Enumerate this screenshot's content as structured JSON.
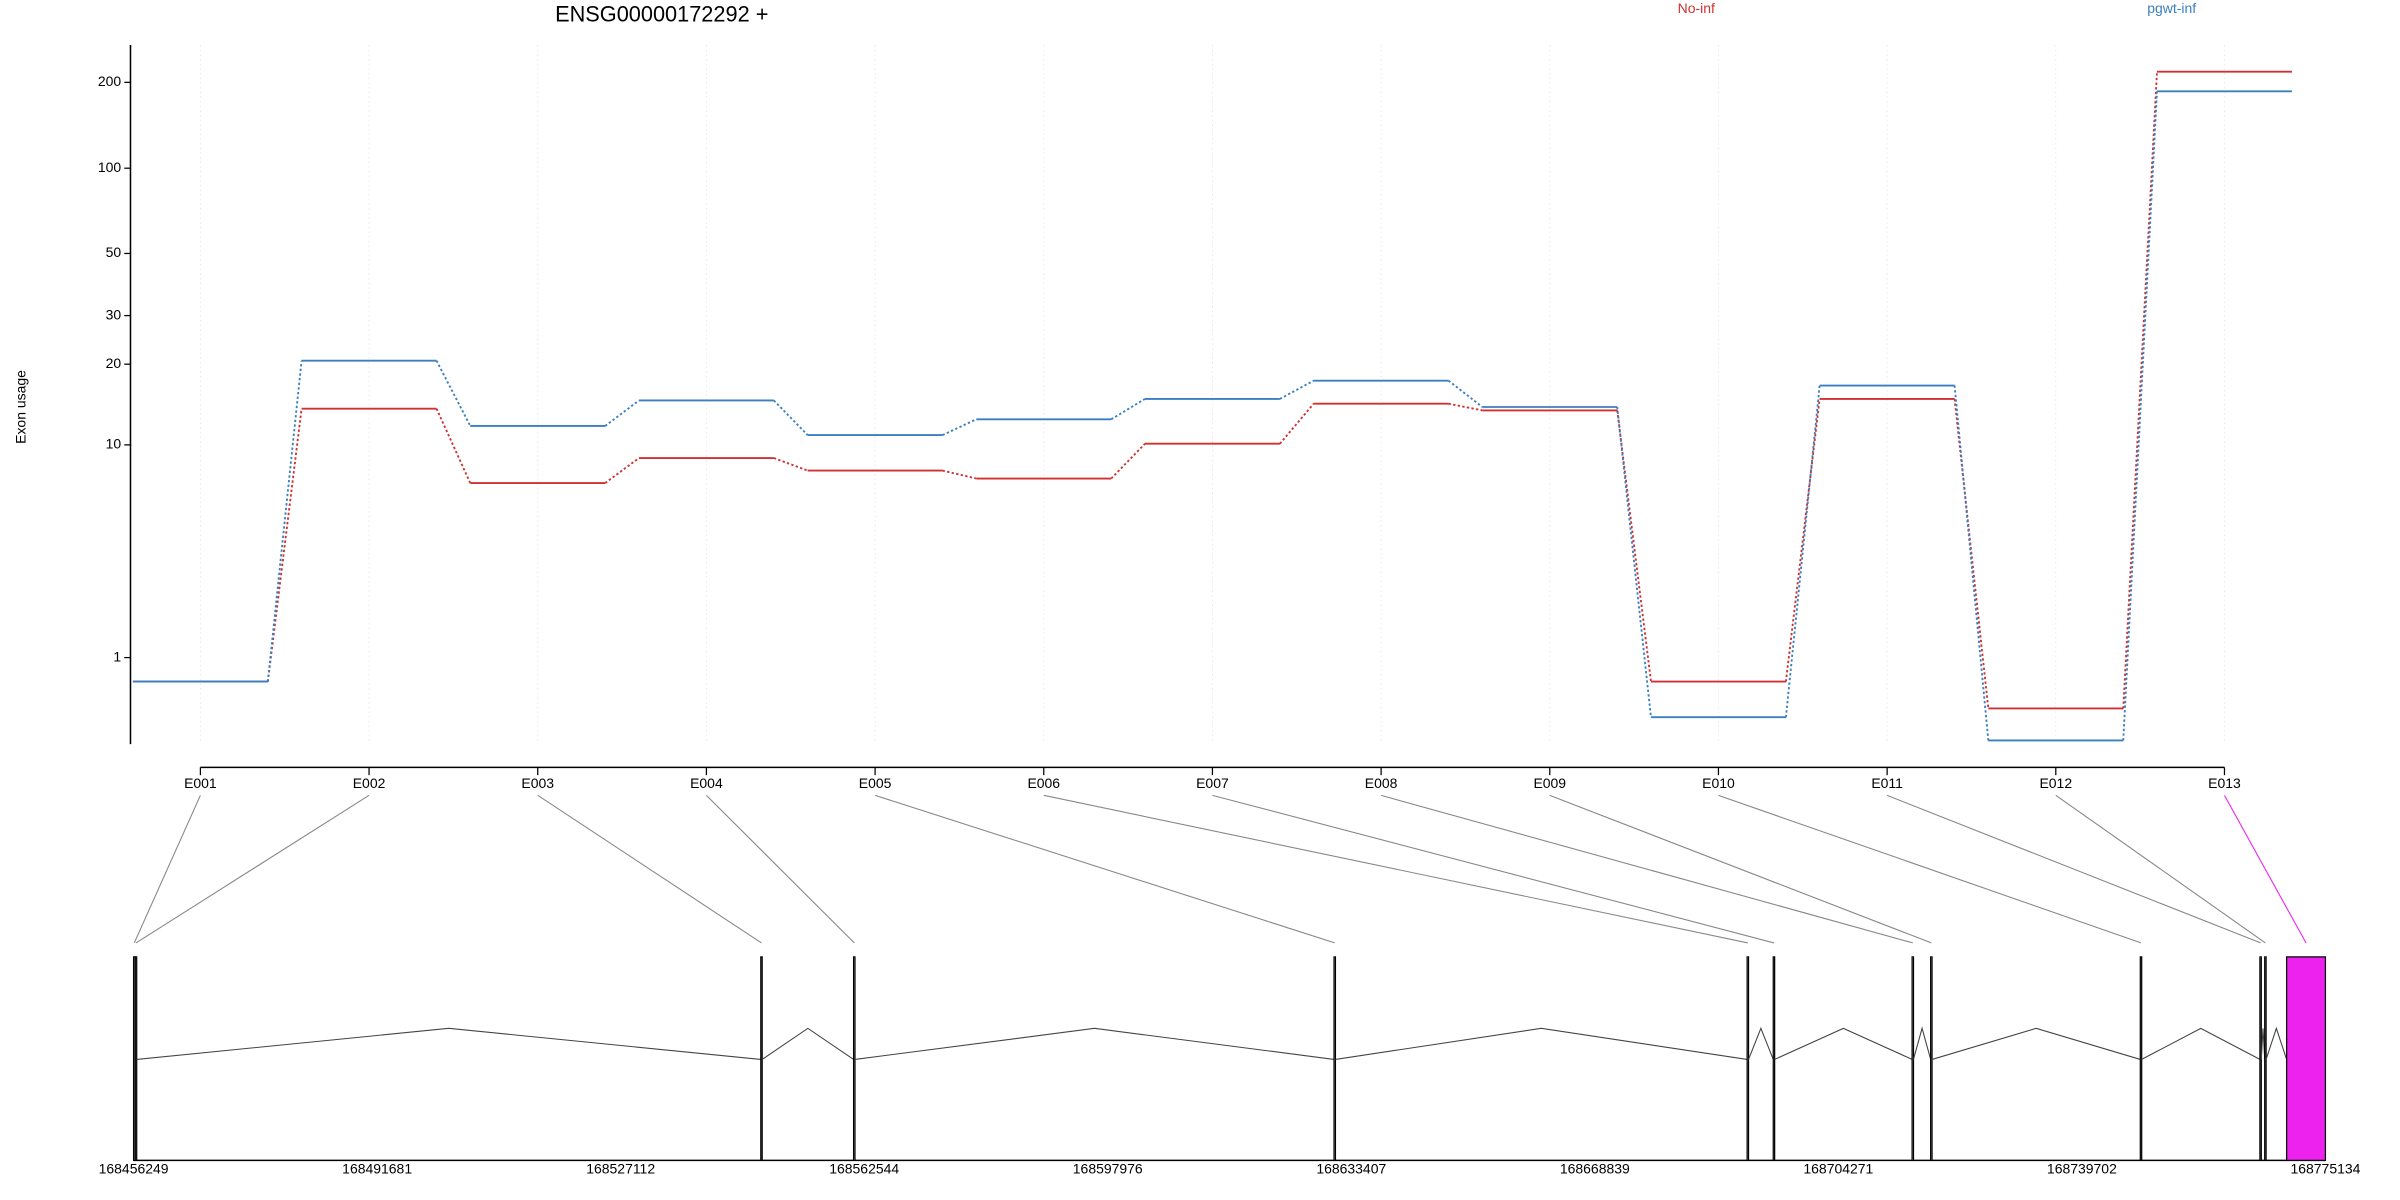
{
  "chart_data": {
    "type": "exon_usage",
    "title": "ENSG00000172292 +",
    "y_label": "Exon usage",
    "yscale": "log1p",
    "ylim": [
      0,
      270
    ],
    "yticks": [
      1,
      10,
      20,
      30,
      50,
      100,
      200
    ],
    "grid": true,
    "legend": "top-right",
    "categories": [
      "E001",
      "E002",
      "E003",
      "E004",
      "E005",
      "E006",
      "E007",
      "E008",
      "E009",
      "E010",
      "E011",
      "E012",
      "E013"
    ],
    "series": [
      {
        "name": "No-inf",
        "color": "#d03030",
        "values": [
          0.65,
          13.7,
          7.1,
          8.9,
          7.95,
          7.4,
          10.1,
          14.3,
          13.5,
          0.65,
          14.9,
          0.33,
          218
        ]
      },
      {
        "name": "pgwt-inf",
        "color": "#3a7fc0",
        "values": [
          0.65,
          20.6,
          11.8,
          14.7,
          10.9,
          12.5,
          14.9,
          17.4,
          13.9,
          0.24,
          16.7,
          0.03,
          186
        ]
      }
    ],
    "gene_model": {
      "xlim": [
        168456249,
        168775134
      ],
      "xticks": [
        168456249,
        168491681,
        168527112,
        168562544,
        168597976,
        168633407,
        168668839,
        168704271,
        168739702,
        168775134
      ],
      "exons": [
        [
          168456249,
          168456450
        ],
        [
          168456500,
          168456700
        ],
        [
          168547500,
          168547700
        ],
        [
          168561000,
          168561200
        ],
        [
          168630900,
          168631100
        ],
        [
          168691000,
          168691200
        ],
        [
          168694800,
          168695000
        ],
        [
          168715000,
          168715200
        ],
        [
          168717700,
          168717900
        ],
        [
          168748200,
          168748400
        ],
        [
          168765600,
          168765800
        ],
        [
          168766300,
          168766500
        ],
        [
          168769485,
          168775134
        ]
      ],
      "highlight_exon": "E013",
      "highlight_color": "#ee22ee"
    }
  }
}
